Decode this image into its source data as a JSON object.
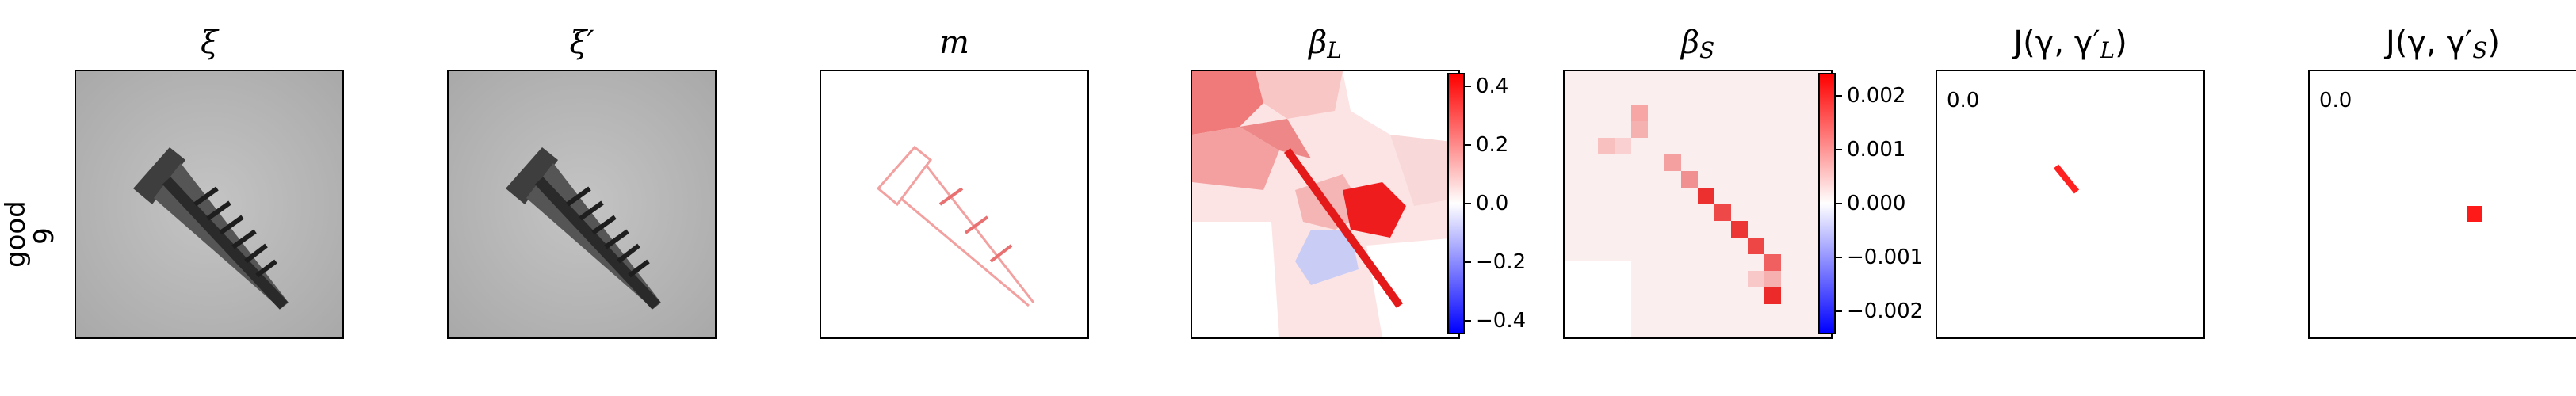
{
  "row_label": {
    "line1": "good",
    "line2": "9"
  },
  "titles": {
    "xi": "ξ",
    "xi_prime": "ξ′",
    "m": "m",
    "beta_l": "β",
    "beta_l_sub": "L",
    "beta_s": "β",
    "beta_s_sub": "S",
    "j_l": "J(γ, γ′",
    "j_l_sub": "L",
    "j_l_end": ")",
    "j_s": "J(γ, γ′",
    "j_s_sub": "S",
    "j_s_end": ")"
  },
  "colorbar_beta_l": {
    "ticks": [
      "0.4",
      "0.2",
      "0.0",
      "−0.2",
      "−0.4"
    ]
  },
  "colorbar_beta_s": {
    "ticks": [
      "0.002",
      "0.001",
      "0.000",
      "−0.001",
      "−0.002"
    ]
  },
  "j_values": {
    "j_l": "0.0",
    "j_s": "0.0"
  },
  "colors": {
    "positive": "#ff0000",
    "negative": "#0000ff",
    "neutral": "#ffffff",
    "image_bg": "#b9b9b9"
  }
}
